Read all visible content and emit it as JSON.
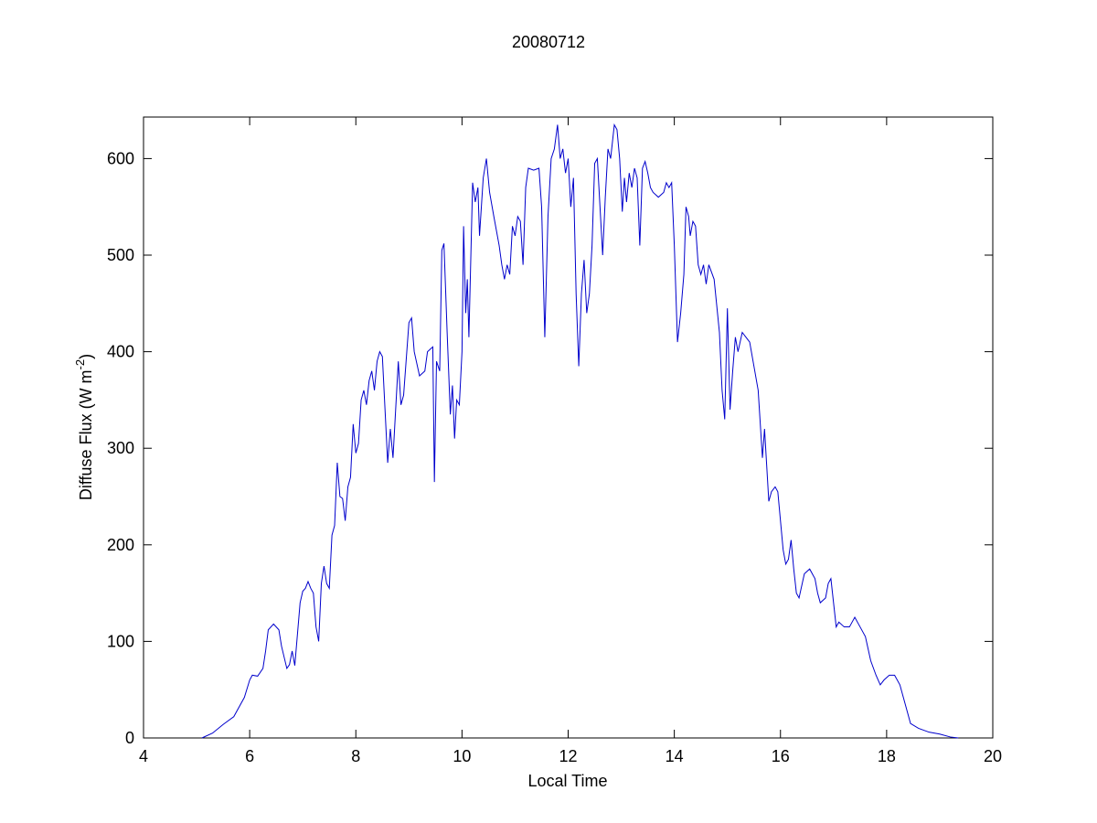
{
  "chart_data": {
    "type": "line",
    "title": "20080712",
    "xlabel": "Local Time",
    "ylabel": "Diffuse Flux (W m",
    "ylabel_sup": "-2",
    "ylabel_end": ")",
    "xlim": [
      4,
      20
    ],
    "ylim": [
      0,
      643
    ],
    "xticks": [
      4,
      6,
      8,
      10,
      12,
      14,
      16,
      18,
      20
    ],
    "yticks": [
      0,
      100,
      200,
      300,
      400,
      500,
      600
    ],
    "grid": false,
    "x": [
      5.1,
      5.3,
      5.5,
      5.7,
      5.9,
      6.0,
      6.05,
      6.15,
      6.25,
      6.3,
      6.35,
      6.45,
      6.55,
      6.6,
      6.7,
      6.75,
      6.8,
      6.85,
      6.95,
      7.0,
      7.05,
      7.1,
      7.15,
      7.2,
      7.25,
      7.3,
      7.35,
      7.4,
      7.45,
      7.5,
      7.55,
      7.6,
      7.65,
      7.7,
      7.75,
      7.8,
      7.85,
      7.9,
      7.95,
      8.0,
      8.05,
      8.1,
      8.15,
      8.2,
      8.25,
      8.3,
      8.35,
      8.4,
      8.45,
      8.5,
      8.55,
      8.6,
      8.65,
      8.7,
      8.75,
      8.8,
      8.85,
      8.9,
      9.0,
      9.05,
      9.1,
      9.2,
      9.3,
      9.35,
      9.45,
      9.48,
      9.52,
      9.58,
      9.62,
      9.66,
      9.72,
      9.78,
      9.82,
      9.86,
      9.9,
      9.95,
      10.0,
      10.03,
      10.07,
      10.1,
      10.13,
      10.2,
      10.25,
      10.3,
      10.33,
      10.4,
      10.46,
      10.52,
      10.6,
      10.7,
      10.75,
      10.8,
      10.85,
      10.9,
      10.95,
      11.0,
      11.05,
      11.1,
      11.15,
      11.2,
      11.25,
      11.35,
      11.45,
      11.5,
      11.56,
      11.62,
      11.68,
      11.74,
      11.8,
      11.85,
      11.9,
      11.95,
      12.0,
      12.05,
      12.1,
      12.15,
      12.2,
      12.25,
      12.3,
      12.35,
      12.4,
      12.45,
      12.5,
      12.55,
      12.6,
      12.65,
      12.7,
      12.75,
      12.8,
      12.87,
      12.92,
      12.97,
      13.02,
      13.06,
      13.1,
      13.15,
      13.2,
      13.25,
      13.3,
      13.35,
      13.4,
      13.45,
      13.5,
      13.55,
      13.6,
      13.7,
      13.8,
      13.85,
      13.9,
      13.95,
      14.0,
      14.06,
      14.12,
      14.18,
      14.22,
      14.27,
      14.3,
      14.35,
      14.4,
      14.45,
      14.5,
      14.55,
      14.6,
      14.65,
      14.75,
      14.85,
      14.9,
      14.95,
      15.0,
      15.05,
      15.1,
      15.15,
      15.2,
      15.28,
      15.35,
      15.42,
      15.5,
      15.58,
      15.62,
      15.66,
      15.7,
      15.78,
      15.83,
      15.9,
      15.95,
      16.0,
      16.05,
      16.1,
      16.15,
      16.2,
      16.25,
      16.3,
      16.35,
      16.45,
      16.55,
      16.65,
      16.7,
      16.75,
      16.85,
      16.9,
      16.95,
      17.0,
      17.05,
      17.1,
      17.2,
      17.3,
      17.4,
      17.5,
      17.6,
      17.7,
      17.8,
      17.88,
      17.95,
      18.05,
      18.15,
      18.25,
      18.35,
      18.45,
      18.6,
      18.8,
      19.0,
      19.2,
      19.35
    ],
    "series": [
      {
        "name": "Diffuse Flux",
        "color": "#0000cc",
        "values": [
          0,
          5,
          14,
          22,
          42,
          60,
          65,
          64,
          72,
          90,
          112,
          118,
          112,
          95,
          72,
          76,
          90,
          75,
          140,
          152,
          155,
          162,
          155,
          150,
          115,
          100,
          160,
          178,
          160,
          155,
          210,
          220,
          285,
          250,
          248,
          225,
          260,
          270,
          325,
          295,
          305,
          350,
          360,
          345,
          370,
          380,
          360,
          390,
          400,
          395,
          340,
          285,
          320,
          290,
          340,
          390,
          345,
          355,
          430,
          435,
          400,
          375,
          380,
          400,
          405,
          265,
          390,
          380,
          505,
          512,
          420,
          335,
          365,
          310,
          350,
          345,
          400,
          530,
          440,
          475,
          415,
          575,
          555,
          570,
          520,
          580,
          600,
          565,
          540,
          510,
          490,
          475,
          490,
          480,
          530,
          520,
          540,
          535,
          490,
          570,
          590,
          588,
          590,
          550,
          415,
          540,
          600,
          610,
          635,
          600,
          610,
          585,
          600,
          550,
          580,
          460,
          385,
          460,
          495,
          440,
          460,
          510,
          595,
          600,
          550,
          500,
          560,
          610,
          600,
          635,
          630,
          600,
          545,
          580,
          555,
          585,
          570,
          590,
          580,
          510,
          590,
          597,
          585,
          570,
          565,
          560,
          565,
          575,
          570,
          575,
          510,
          410,
          440,
          480,
          550,
          540,
          520,
          535,
          530,
          490,
          480,
          490,
          470,
          490,
          475,
          420,
          360,
          330,
          445,
          340,
          380,
          415,
          400,
          420,
          415,
          410,
          385,
          360,
          325,
          290,
          320,
          245,
          255,
          260,
          255,
          225,
          195,
          180,
          185,
          205,
          175,
          150,
          145,
          170,
          175,
          165,
          150,
          140,
          145,
          160,
          165,
          140,
          115,
          120,
          115,
          115,
          125,
          115,
          105,
          80,
          65,
          55,
          60,
          65,
          65,
          55,
          35,
          15,
          10,
          6,
          4,
          1,
          0
        ]
      }
    ]
  }
}
